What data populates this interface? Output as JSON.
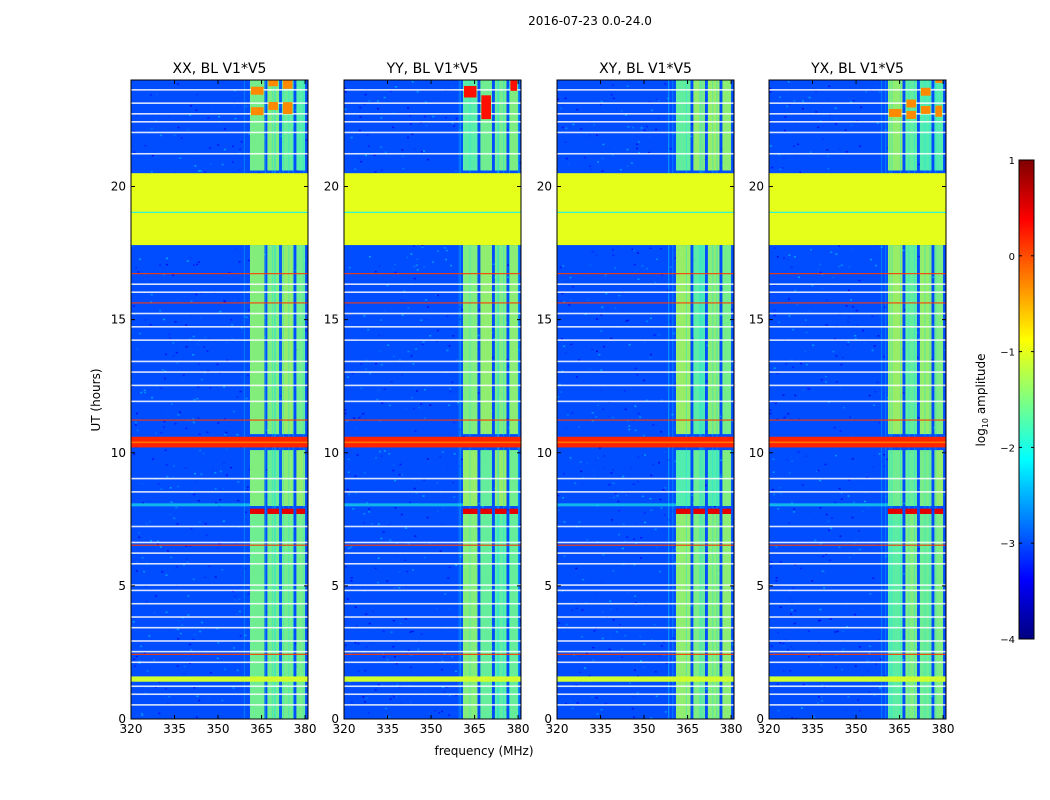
{
  "figure": {
    "suptitle": "2016-07-23 0.0-24.0",
    "xlabel": "frequency (MHz)",
    "ylabel": "UT (hours)"
  },
  "chart_data": {
    "type": "heatmap",
    "title": "2016-07-23 0.0-24.0",
    "xlabel": "frequency (MHz)",
    "ylabel": "UT (hours)",
    "xlim": [
      320,
      381
    ],
    "ylim": [
      0,
      24
    ],
    "xticks": [
      320,
      335,
      350,
      365,
      380
    ],
    "yticks": [
      0,
      5,
      10,
      15,
      20
    ],
    "panels": [
      {
        "title": "XX, BL V1*V5",
        "polarization": "XX"
      },
      {
        "title": "YY, BL V1*V5",
        "polarization": "YY"
      },
      {
        "title": "XY, BL V1*V5",
        "polarization": "XY"
      },
      {
        "title": "YX, BL V1*V5",
        "polarization": "YX"
      }
    ],
    "colorbar": {
      "label": "log10 amplitude",
      "label_text": "log",
      "label_sub": "10",
      "label_rest": " amplitude",
      "range": [
        -4,
        1
      ],
      "ticks": [
        1,
        0,
        -1,
        -2,
        -3,
        -4
      ],
      "tick_labels": [
        "1",
        "0",
        "−1",
        "−2",
        "−3",
        "−4"
      ],
      "colormap": "jet"
    },
    "features": {
      "background_level": -3.0,
      "rfi_band_mhz": [
        361,
        380
      ],
      "rfi_band_level": -1.5,
      "flagged_hours": [
        17.8,
        20.5
      ],
      "flagged_level": -1.0,
      "rfi_burst_hours": [
        10.2,
        10.6
      ],
      "rfi_burst_level": 0.2,
      "rfi_burst2_hours": [
        7.7,
        7.9
      ],
      "rfi_burst2_level": 0.5,
      "flagged_strip_hours": [
        1.4,
        1.6
      ]
    }
  },
  "colors": {
    "jet_dark_blue": "#00007f",
    "jet_blue": "#0000ff",
    "jet_cyan": "#00ffff",
    "jet_green": "#7fff7f",
    "jet_yellow": "#ffff00",
    "jet_red": "#ff0000",
    "jet_dark_red": "#7f0000",
    "background_blue": "#1a3fd8",
    "flagged_green": "#9cff5a",
    "rfi_orange": "#ff6a1a"
  }
}
